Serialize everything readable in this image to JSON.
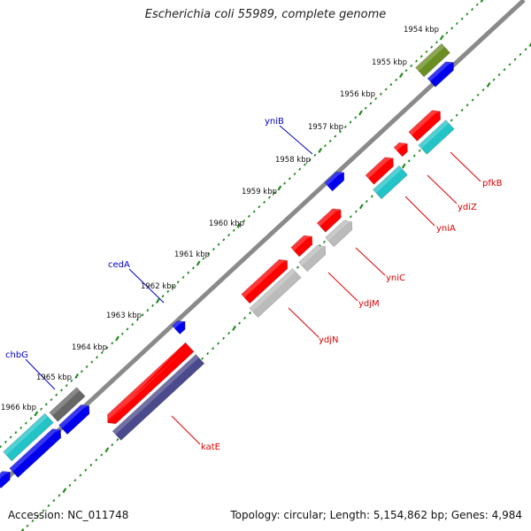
{
  "title": "Escherichia coli 55989, complete genome",
  "accession_text": "Accession: NC_011748",
  "summary_text": "Topology: circular; Length: 5,154,862 bp; Genes: 4,984",
  "colors": {
    "backbone": "#8a8a8a",
    "tick_ring": "#228b22",
    "label_red": "#dd0000",
    "label_blue": "#0000cc",
    "red": "#ff0000",
    "blue": "#0000ee",
    "cyan": "#22c4c8",
    "gray": "#bbbbbb",
    "darkgray": "#666666",
    "olive": "#6b8e23",
    "purple": "#4b4a8c"
  },
  "scale_ticks": [
    {
      "label": "1954 kbp"
    },
    {
      "label": "1955 kbp"
    },
    {
      "label": "1956 kbp"
    },
    {
      "label": "1957 kbp"
    },
    {
      "label": "1958 kbp"
    },
    {
      "label": "1959 kbp"
    },
    {
      "label": "1960 kbp"
    },
    {
      "label": "1961 kbp"
    },
    {
      "label": "1962 kbp"
    },
    {
      "label": "1963 kbp"
    },
    {
      "label": "1964 kbp"
    },
    {
      "label": "1965 kbp"
    },
    {
      "label": "1966 kbp"
    }
  ],
  "gene_labels": [
    {
      "text": "yniB",
      "color": "blue"
    },
    {
      "text": "cedA",
      "color": "blue"
    },
    {
      "text": "chbG",
      "color": "blue"
    },
    {
      "text": "pfkB",
      "color": "red"
    },
    {
      "text": "ydiZ",
      "color": "red"
    },
    {
      "text": "yniA",
      "color": "red"
    },
    {
      "text": "yniC",
      "color": "red"
    },
    {
      "text": "ydjM",
      "color": "red"
    },
    {
      "text": "ydjN",
      "color": "red"
    },
    {
      "text": "katE",
      "color": "red"
    }
  ]
}
